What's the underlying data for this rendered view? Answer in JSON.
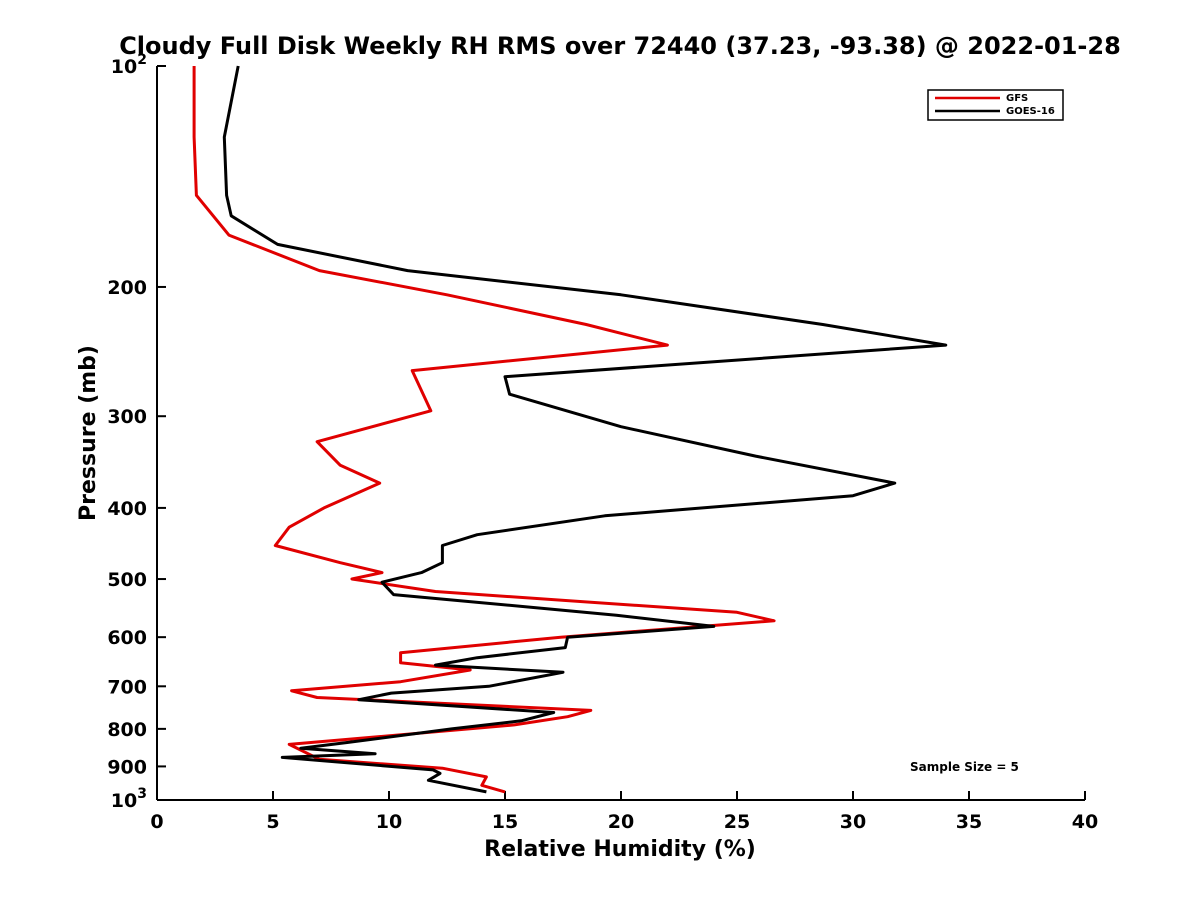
{
  "chart_data": {
    "type": "line",
    "title": "Cloudy Full Disk Weekly RH RMS over 72440 (37.23, -93.38) @ 2022-01-28",
    "xlabel": "Relative Humidity (%)",
    "ylabel": "Pressure (mb)",
    "xlim": [
      0,
      40
    ],
    "ylim": [
      100,
      1000
    ],
    "y_scale": "log",
    "y_reversed": true,
    "grid": false,
    "legend_position": "top-right",
    "x_ticks": [
      "0",
      "5",
      "10",
      "15",
      "20",
      "25",
      "30",
      "35",
      "40"
    ],
    "y_ticks": [
      {
        "value": 100,
        "base": "10",
        "exp": "2"
      },
      {
        "value": 200,
        "label": "200"
      },
      {
        "value": 300,
        "label": "300"
      },
      {
        "value": 400,
        "label": "400"
      },
      {
        "value": 500,
        "label": "500"
      },
      {
        "value": 600,
        "label": "600"
      },
      {
        "value": 700,
        "label": "700"
      },
      {
        "value": 800,
        "label": "800"
      },
      {
        "value": 900,
        "label": "900"
      },
      {
        "value": 1000,
        "base": "10",
        "exp": "3"
      }
    ],
    "annotation": "Sample Size = 5",
    "series": [
      {
        "name": "GFS",
        "color": "#e00000",
        "points": [
          [
            1.6,
            100
          ],
          [
            1.6,
            125
          ],
          [
            1.7,
            150
          ],
          [
            3.1,
            170
          ],
          [
            7.0,
            190
          ],
          [
            12.5,
            205
          ],
          [
            18.5,
            225
          ],
          [
            22.0,
            240
          ],
          [
            11.0,
            260
          ],
          [
            11.8,
            295
          ],
          [
            6.9,
            325
          ],
          [
            7.9,
            350
          ],
          [
            9.6,
            370
          ],
          [
            7.2,
            400
          ],
          [
            5.7,
            425
          ],
          [
            5.1,
            450
          ],
          [
            7.9,
            475
          ],
          [
            9.7,
            490
          ],
          [
            8.4,
            500
          ],
          [
            12.0,
            520
          ],
          [
            25.0,
            555
          ],
          [
            26.6,
            570
          ],
          [
            17.4,
            600
          ],
          [
            10.5,
            630
          ],
          [
            10.5,
            650
          ],
          [
            13.5,
            665
          ],
          [
            10.5,
            690
          ],
          [
            5.8,
            710
          ],
          [
            6.9,
            725
          ],
          [
            18.7,
            755
          ],
          [
            17.7,
            770
          ],
          [
            15.4,
            790
          ],
          [
            5.7,
            840
          ],
          [
            7.0,
            880
          ],
          [
            12.3,
            905
          ],
          [
            14.2,
            930
          ],
          [
            14.0,
            955
          ],
          [
            15.0,
            975
          ]
        ]
      },
      {
        "name": "GOES-16",
        "color": "#000000",
        "points": [
          [
            3.5,
            100
          ],
          [
            2.9,
            125
          ],
          [
            3.0,
            150
          ],
          [
            3.2,
            160
          ],
          [
            5.2,
            175
          ],
          [
            10.8,
            190
          ],
          [
            20.0,
            205
          ],
          [
            28.7,
            225
          ],
          [
            34.0,
            240
          ],
          [
            15.0,
            265
          ],
          [
            15.2,
            280
          ],
          [
            20.0,
            310
          ],
          [
            25.8,
            340
          ],
          [
            31.8,
            370
          ],
          [
            30.0,
            385
          ],
          [
            19.3,
            410
          ],
          [
            13.8,
            435
          ],
          [
            12.3,
            450
          ],
          [
            12.3,
            475
          ],
          [
            11.4,
            490
          ],
          [
            9.7,
            505
          ],
          [
            10.2,
            525
          ],
          [
            19.8,
            560
          ],
          [
            24.0,
            580
          ],
          [
            17.7,
            600
          ],
          [
            17.6,
            620
          ],
          [
            13.8,
            640
          ],
          [
            12.0,
            655
          ],
          [
            17.5,
            670
          ],
          [
            14.3,
            700
          ],
          [
            10.1,
            715
          ],
          [
            8.7,
            730
          ],
          [
            17.1,
            760
          ],
          [
            15.7,
            780
          ],
          [
            12.7,
            800
          ],
          [
            8.2,
            835
          ],
          [
            6.2,
            850
          ],
          [
            9.4,
            865
          ],
          [
            5.4,
            875
          ],
          [
            11.9,
            910
          ],
          [
            12.2,
            920
          ],
          [
            11.7,
            940
          ],
          [
            14.2,
            975
          ]
        ]
      }
    ]
  }
}
